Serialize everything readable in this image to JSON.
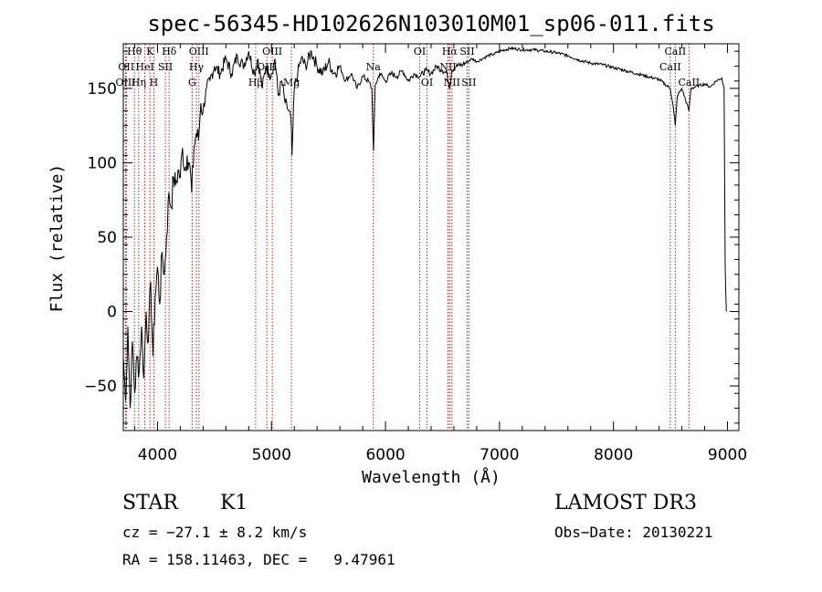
{
  "chart_data": {
    "type": "line",
    "title": "spec-56345-HD102626N103010M01_sp06-011.fits",
    "xlabel": "Wavelength (Å)",
    "ylabel": "Flux (relative)",
    "xlim": [
      3700,
      9100
    ],
    "ylim": [
      -80,
      180
    ],
    "xticks": [
      4000,
      5000,
      6000,
      7000,
      8000,
      9000
    ],
    "yticks": [
      -50,
      0,
      50,
      100,
      150
    ],
    "series": [
      {
        "values": [
          [
            3700,
            -30
          ],
          [
            3720,
            -60
          ],
          [
            3740,
            -10
          ],
          [
            3760,
            -65
          ],
          [
            3780,
            -20
          ],
          [
            3800,
            -55
          ],
          [
            3820,
            -30
          ],
          [
            3840,
            -40
          ],
          [
            3860,
            -10
          ],
          [
            3880,
            -45
          ],
          [
            3900,
            0
          ],
          [
            3920,
            -20
          ],
          [
            3940,
            20
          ],
          [
            3960,
            -30
          ],
          [
            3980,
            10
          ],
          [
            4000,
            30
          ],
          [
            4020,
            5
          ],
          [
            4040,
            40
          ],
          [
            4060,
            25
          ],
          [
            4080,
            50
          ],
          [
            4100,
            80
          ],
          [
            4120,
            70
          ],
          [
            4140,
            90
          ],
          [
            4160,
            85
          ],
          [
            4180,
            95
          ],
          [
            4200,
            90
          ],
          [
            4220,
            110
          ],
          [
            4240,
            95
          ],
          [
            4260,
            105
          ],
          [
            4280,
            100
          ],
          [
            4300,
            80
          ],
          [
            4320,
            110
          ],
          [
            4340,
            120
          ],
          [
            4360,
            115
          ],
          [
            4380,
            140
          ],
          [
            4400,
            135
          ],
          [
            4430,
            150
          ],
          [
            4460,
            155
          ],
          [
            4500,
            165
          ],
          [
            4550,
            160
          ],
          [
            4600,
            170
          ],
          [
            4650,
            160
          ],
          [
            4700,
            172
          ],
          [
            4750,
            165
          ],
          [
            4800,
            175
          ],
          [
            4850,
            160
          ],
          [
            4880,
            170
          ],
          [
            4920,
            150
          ],
          [
            4950,
            165
          ],
          [
            4980,
            160
          ],
          [
            5000,
            160
          ],
          [
            5030,
            170
          ],
          [
            5060,
            145
          ],
          [
            5090,
            155
          ],
          [
            5120,
            140
          ],
          [
            5150,
            135
          ],
          [
            5170,
            130
          ],
          [
            5180,
            105
          ],
          [
            5200,
            150
          ],
          [
            5230,
            160
          ],
          [
            5260,
            170
          ],
          [
            5300,
            165
          ],
          [
            5350,
            175
          ],
          [
            5400,
            165
          ],
          [
            5450,
            160
          ],
          [
            5500,
            168
          ],
          [
            5550,
            160
          ],
          [
            5600,
            165
          ],
          [
            5650,
            155
          ],
          [
            5700,
            160
          ],
          [
            5750,
            150
          ],
          [
            5800,
            158
          ],
          [
            5850,
            155
          ],
          [
            5880,
            150
          ],
          [
            5895,
            108
          ],
          [
            5910,
            152
          ],
          [
            5950,
            160
          ],
          [
            6000,
            155
          ],
          [
            6050,
            160
          ],
          [
            6100,
            158
          ],
          [
            6150,
            162
          ],
          [
            6200,
            155
          ],
          [
            6250,
            160
          ],
          [
            6300,
            158
          ],
          [
            6350,
            162
          ],
          [
            6400,
            160
          ],
          [
            6450,
            165
          ],
          [
            6500,
            162
          ],
          [
            6540,
            160
          ],
          [
            6563,
            150
          ],
          [
            6580,
            162
          ],
          [
            6620,
            165
          ],
          [
            6680,
            166
          ],
          [
            6720,
            168
          ],
          [
            6760,
            170
          ],
          [
            6800,
            168
          ],
          [
            6850,
            170
          ],
          [
            6900,
            172
          ],
          [
            6950,
            173
          ],
          [
            7000,
            175
          ],
          [
            7100,
            177
          ],
          [
            7200,
            176
          ],
          [
            7300,
            176
          ],
          [
            7400,
            175
          ],
          [
            7500,
            174
          ],
          [
            7600,
            172
          ],
          [
            7700,
            169
          ],
          [
            7800,
            167
          ],
          [
            7900,
            166
          ],
          [
            8000,
            164
          ],
          [
            8100,
            162
          ],
          [
            8200,
            160
          ],
          [
            8300,
            158
          ],
          [
            8400,
            156
          ],
          [
            8498,
            150
          ],
          [
            8520,
            140
          ],
          [
            8542,
            125
          ],
          [
            8560,
            145
          ],
          [
            8600,
            150
          ],
          [
            8662,
            135
          ],
          [
            8680,
            150
          ],
          [
            8750,
            152
          ],
          [
            8800,
            153
          ],
          [
            8850,
            151
          ],
          [
            8900,
            155
          ],
          [
            8950,
            157
          ],
          [
            8970,
            150
          ],
          [
            8980,
            30
          ],
          [
            8990,
            0
          ]
        ]
      }
    ],
    "lines": [
      {
        "x": 3798,
        "label": "Hθ",
        "row": 0
      },
      {
        "x": 3726,
        "label": "OII",
        "row": 1
      },
      {
        "x": 3720,
        "label": "OIII",
        "row": 2
      },
      {
        "x": 3835,
        "label": "Hη",
        "row": 2
      },
      {
        "x": 3889,
        "label": "HeI",
        "row": 1
      },
      {
        "x": 3934,
        "label": "K",
        "row": 0
      },
      {
        "x": 3968,
        "label": "H",
        "row": 2
      },
      {
        "x": 4069,
        "label": "SII",
        "row": 1
      },
      {
        "x": 4102,
        "label": "Hδ",
        "row": 0
      },
      {
        "x": 4304,
        "label": "G",
        "row": 2
      },
      {
        "x": 4341,
        "label": "Hγ",
        "row": 1
      },
      {
        "x": 4363,
        "label": "OIII",
        "row": 0
      },
      {
        "x": 4861,
        "label": "Hβ",
        "row": 2
      },
      {
        "x": 4959,
        "label": "OIII",
        "row": 1
      },
      {
        "x": 5007,
        "label": "OIII",
        "row": 0
      },
      {
        "x": 5175,
        "label": "Mg",
        "row": 2
      },
      {
        "x": 5893,
        "label": "Na",
        "row": 1
      },
      {
        "x": 6300,
        "label": "OI",
        "row": 0
      },
      {
        "x": 6364,
        "label": "OI",
        "row": 2
      },
      {
        "x": 6548,
        "label": "NII",
        "row": 1
      },
      {
        "x": 6563,
        "label": "Hα",
        "row": 0
      },
      {
        "x": 6583,
        "label": "NII",
        "row": 2
      },
      {
        "x": 6716,
        "label": "SII",
        "row": 0
      },
      {
        "x": 6731,
        "label": "SII",
        "row": 2
      },
      {
        "x": 8498,
        "label": "CaII",
        "row": 1
      },
      {
        "x": 8542,
        "label": "CaII",
        "row": 0
      },
      {
        "x": 8662,
        "label": "CaII",
        "row": 2
      }
    ]
  },
  "info": {
    "class": "STAR",
    "subclass": "K1",
    "cz": "cz = −27.1 ± 8.2 km/s",
    "coords": "RA = 158.11463, DEC =   9.47961",
    "survey": "LAMOST DR3",
    "obs_date": "Obs−Date: 20130221"
  }
}
